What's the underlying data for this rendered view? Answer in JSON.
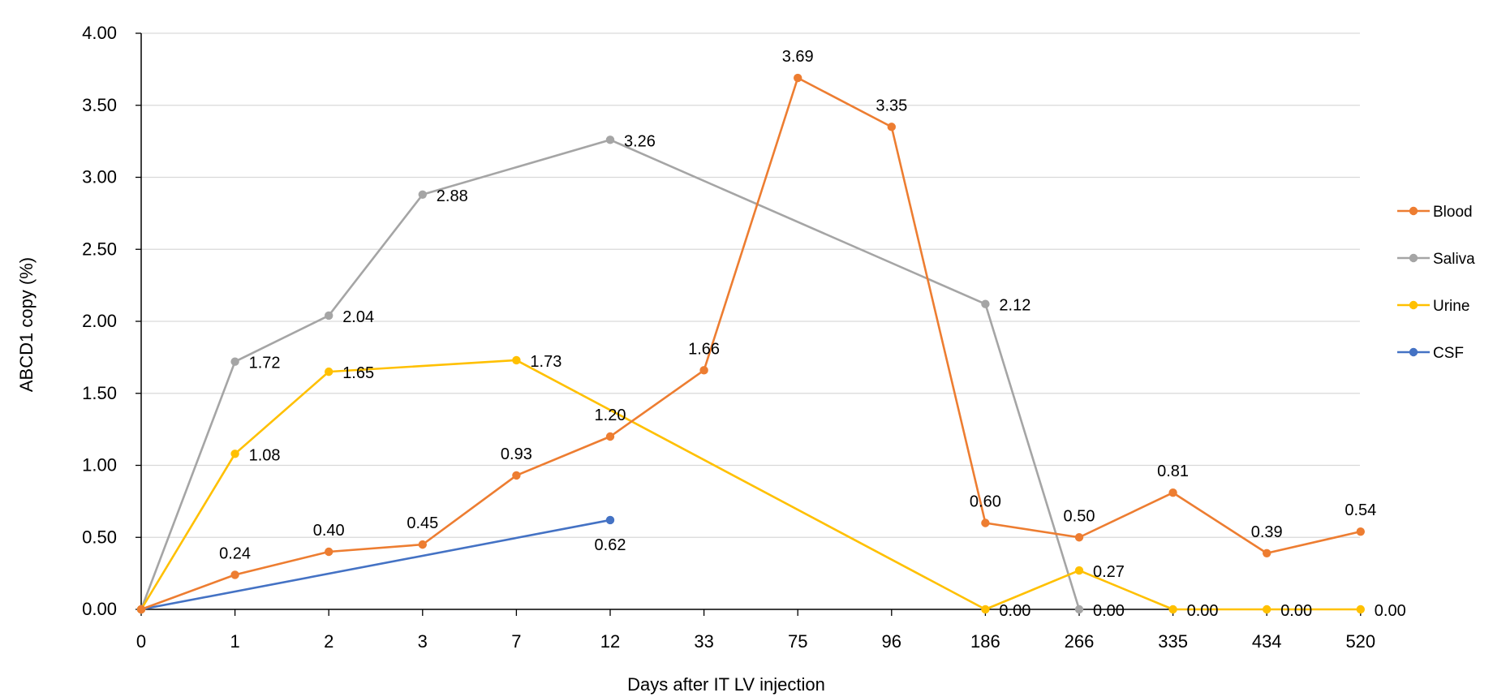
{
  "chart_data": {
    "type": "line",
    "title": "",
    "xlabel": "Days after IT LV injection",
    "ylabel": "ABCD1 copy (%)",
    "categories": [
      "0",
      "1",
      "2",
      "3",
      "7",
      "12",
      "33",
      "75",
      "96",
      "186",
      "266",
      "335",
      "434",
      "520"
    ],
    "y_ticks": [
      "0.00",
      "0.50",
      "1.00",
      "1.50",
      "2.00",
      "2.50",
      "3.00",
      "3.50",
      "4.00"
    ],
    "ylim": [
      0,
      4
    ],
    "grid": "horizontal",
    "legend_position": "right",
    "series": [
      {
        "name": "Blood",
        "color": "#ED7D31",
        "values": [
          0.0,
          0.24,
          0.4,
          0.45,
          0.93,
          1.2,
          1.66,
          3.69,
          3.35,
          0.6,
          0.5,
          0.81,
          0.39,
          0.54
        ],
        "labels": [
          "",
          "0.24",
          "0.40",
          "0.45",
          "0.93",
          "1.20",
          "1.66",
          "3.69",
          "3.35",
          "0.60",
          "0.50",
          "0.81",
          "0.39",
          "0.54"
        ],
        "label_position": "above"
      },
      {
        "name": "Saliva",
        "color": "#A5A5A5",
        "values": [
          0.0,
          1.72,
          2.04,
          2.88,
          null,
          3.26,
          null,
          null,
          null,
          2.12,
          0.0,
          null,
          null,
          null
        ],
        "labels": [
          "",
          "1.72",
          "2.04",
          "2.88",
          "",
          "3.26",
          "",
          "",
          "",
          "2.12",
          "0.00",
          "",
          "",
          ""
        ],
        "label_position": "right"
      },
      {
        "name": "Urine",
        "color": "#FFC000",
        "values": [
          0.0,
          1.08,
          1.65,
          null,
          1.73,
          null,
          null,
          null,
          null,
          0.0,
          0.27,
          0.0,
          0.0,
          0.0
        ],
        "labels": [
          "",
          "1.08",
          "1.65",
          "",
          "1.73",
          "",
          "",
          "",
          "",
          "0.00",
          "0.27",
          "0.00",
          "0.00",
          "0.00"
        ],
        "label_position": "right"
      },
      {
        "name": "CSF",
        "color": "#4472C4",
        "values": [
          0.0,
          null,
          null,
          null,
          null,
          0.62,
          null,
          null,
          null,
          null,
          null,
          null,
          null,
          null
        ],
        "labels": [
          "",
          "",
          "",
          "",
          "",
          "0.62",
          "",
          "",
          "",
          "",
          "",
          "",
          "",
          ""
        ],
        "label_position": "below"
      }
    ]
  }
}
